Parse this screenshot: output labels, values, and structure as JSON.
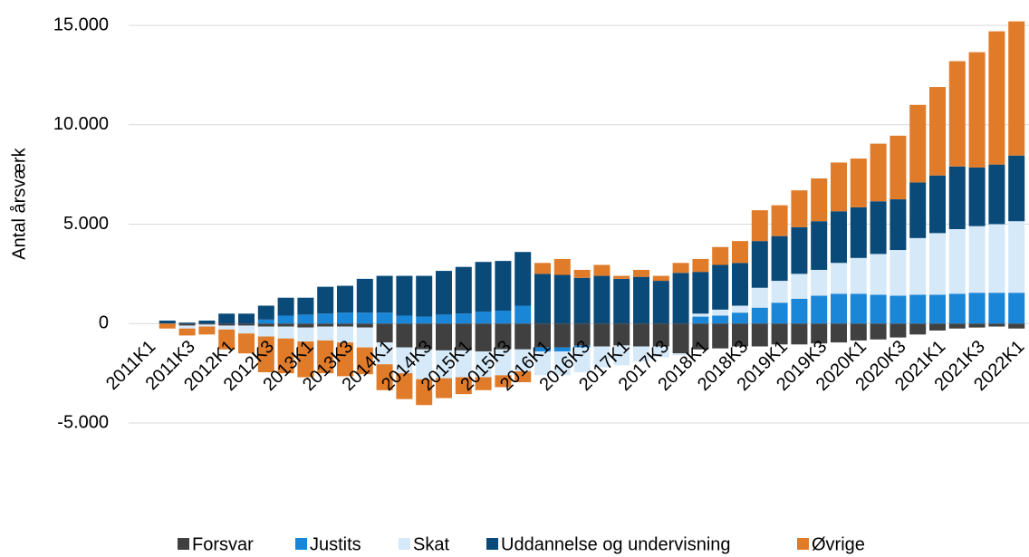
{
  "chart_data": {
    "type": "stacked-bar",
    "y_label": "Antal årsværk",
    "categories": [
      "2011K1",
      null,
      "2011K3",
      null,
      "2012K1",
      null,
      "2012K3",
      null,
      "2013K1",
      null,
      "2013K3",
      null,
      "2014K1",
      null,
      "2014K3",
      null,
      "2015K1",
      null,
      "2015K3",
      null,
      "2016K1",
      null,
      "2016K3",
      null,
      "2017K1",
      null,
      "2017K3",
      null,
      "2018K1",
      null,
      "2018K3",
      null,
      "2019K1",
      null,
      "2019K3",
      null,
      "2020K1",
      null,
      "2020K3",
      null,
      "2021K1",
      null,
      "2021K3",
      null,
      "2022K1"
    ],
    "series": [
      {
        "name": "Forsvar",
        "color": "#404040",
        "values": [
          0,
          0,
          -100,
          -50,
          -100,
          -100,
          -150,
          -150,
          -200,
          -150,
          -150,
          -200,
          -950,
          -1200,
          -1300,
          -1350,
          -1350,
          -1400,
          -1300,
          -1300,
          -1200,
          -1200,
          -1100,
          -1150,
          -1100,
          -1150,
          -1150,
          -1500,
          -1300,
          -1250,
          -1150,
          -1150,
          -1050,
          -1050,
          -1000,
          -950,
          -850,
          -800,
          -700,
          -550,
          -350,
          -250,
          -200,
          -150,
          -250
        ]
      },
      {
        "name": "Justits",
        "color": "#1a86d8",
        "values": [
          0,
          0,
          0,
          0,
          0,
          0,
          200,
          400,
          450,
          500,
          550,
          550,
          550,
          400,
          350,
          450,
          500,
          600,
          650,
          900,
          -200,
          -200,
          -100,
          0,
          0,
          0,
          0,
          0,
          350,
          400,
          550,
          800,
          1050,
          1250,
          1400,
          1500,
          1500,
          1450,
          1400,
          1450,
          1450,
          1500,
          1550,
          1550,
          1550
        ]
      },
      {
        "name": "Skat",
        "color": "#d6e9f8",
        "values": [
          0,
          0,
          -150,
          -100,
          -200,
          -400,
          -500,
          -600,
          -700,
          -700,
          -800,
          -1000,
          -1100,
          -1300,
          -1500,
          -1400,
          -1350,
          -1300,
          -1300,
          -1100,
          -1200,
          -1200,
          -1250,
          -1050,
          -1000,
          -750,
          -550,
          -100,
          150,
          300,
          350,
          1000,
          1100,
          1250,
          1300,
          1550,
          1800,
          2050,
          2300,
          2850,
          3100,
          3250,
          3350,
          3450,
          3600
        ]
      },
      {
        "name": "Uddannelse og undervisning",
        "color": "#0a4a78",
        "values": [
          0,
          150,
          50,
          150,
          500,
          500,
          700,
          900,
          850,
          1350,
          1350,
          1700,
          1850,
          2000,
          2050,
          2200,
          2350,
          2500,
          2500,
          2700,
          2500,
          2450,
          2300,
          2400,
          2250,
          2350,
          2150,
          2550,
          2100,
          2250,
          2150,
          2350,
          2250,
          2350,
          2450,
          2600,
          2550,
          2650,
          2550,
          2800,
          2900,
          3150,
          2950,
          3000,
          3300
        ]
      },
      {
        "name": "Øvrige",
        "color": "#e07b2a",
        "values": [
          0,
          -250,
          -350,
          -400,
          -1000,
          -1000,
          -1800,
          -1750,
          -1800,
          -1650,
          -1700,
          -1350,
          -1300,
          -1300,
          -1300,
          -1000,
          -850,
          -650,
          -600,
          -550,
          550,
          800,
          400,
          550,
          150,
          350,
          250,
          500,
          650,
          900,
          1100,
          1550,
          1550,
          1850,
          2150,
          2450,
          2450,
          2900,
          3200,
          3900,
          4450,
          5300,
          5800,
          6700,
          6750
        ]
      }
    ],
    "ylim": [
      -5000,
      15000
    ],
    "yticks": [
      {
        "value": -5000,
        "label": "-5.000"
      },
      0,
      {
        "value": 5000,
        "label": "5.000"
      },
      {
        "value": 10000,
        "label": "10.000"
      },
      {
        "value": 15000,
        "label": "15.000"
      }
    ],
    "grid": true
  }
}
